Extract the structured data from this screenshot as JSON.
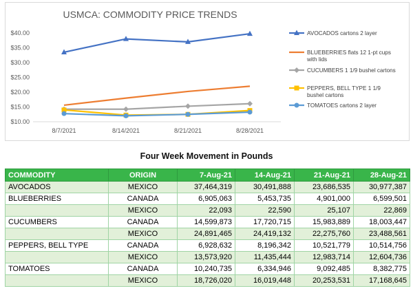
{
  "chart_data": {
    "type": "line",
    "title": "USMCA: COMMODITY PRICE TRENDS",
    "categories": [
      "8/7/2021",
      "8/14/2021",
      "8/21/2021",
      "8/28/2021"
    ],
    "y_ticks": [
      "$10.00",
      "$15.00",
      "$20.00",
      "$25.00",
      "$30.00",
      "$35.00",
      "$40.00"
    ],
    "ylim": [
      10,
      40
    ],
    "grid": false,
    "legend_position": "right",
    "series": [
      {
        "name": "AVOCADOS cartons 2 layer",
        "values": [
          33.5,
          38.0,
          37.0,
          39.75
        ],
        "color": "#4472c4",
        "marker": "triangle"
      },
      {
        "name": "BLUEBERRIES flats 12 1-pt cups with lids",
        "values": [
          15.6,
          18.0,
          20.25,
          22.0
        ],
        "color": "#ed7d31",
        "marker": "none"
      },
      {
        "name": "CUCUMBERS 1 1/9 bushel cartons",
        "values": [
          14.25,
          14.25,
          15.25,
          16.1
        ],
        "color": "#a5a5a5",
        "marker": "diamond"
      },
      {
        "name": "PEPPERS, BELL TYPE 1 1/9 bushel cartons",
        "values": [
          14.0,
          12.25,
          12.5,
          13.8
        ],
        "color": "#ffc000",
        "marker": "square"
      },
      {
        "name": "TOMATOES cartons 2 layer",
        "values": [
          12.75,
          12.0,
          12.5,
          13.25
        ],
        "color": "#5b9bd5",
        "marker": "circle"
      }
    ]
  },
  "table": {
    "title": "Four Week Movement in Pounds",
    "headers": [
      "COMMODITY",
      "ORIGIN",
      "7-Aug-21",
      "14-Aug-21",
      "21-Aug-21",
      "28-Aug-21"
    ],
    "rows": [
      [
        "AVOCADOS",
        "MEXICO",
        "37,464,319",
        "30,491,888",
        "23,686,535",
        "30,977,387"
      ],
      [
        "BLUEBERRIES",
        "CANADA",
        "6,905,063",
        "5,453,735",
        "4,901,000",
        "6,599,501"
      ],
      [
        "",
        "MEXICO",
        "22,093",
        "22,590",
        "25,107",
        "22,869"
      ],
      [
        "CUCUMBERS",
        "CANADA",
        "14,599,873",
        "17,720,715",
        "15,983,889",
        "18,003,447"
      ],
      [
        "",
        "MEXICO",
        "24,891,465",
        "24,419,132",
        "22,275,760",
        "23,488,561"
      ],
      [
        "PEPPERS, BELL TYPE",
        "CANADA",
        "6,928,632",
        "8,196,342",
        "10,521,779",
        "10,514,756"
      ],
      [
        "",
        "MEXICO",
        "13,573,920",
        "11,435,444",
        "12,983,714",
        "12,604,736"
      ],
      [
        "TOMATOES",
        "CANADA",
        "10,240,735",
        "6,334,946",
        "9,092,485",
        "8,382,775"
      ],
      [
        "",
        "MEXICO",
        "18,726,020",
        "16,019,448",
        "20,253,531",
        "17,168,645"
      ]
    ]
  }
}
